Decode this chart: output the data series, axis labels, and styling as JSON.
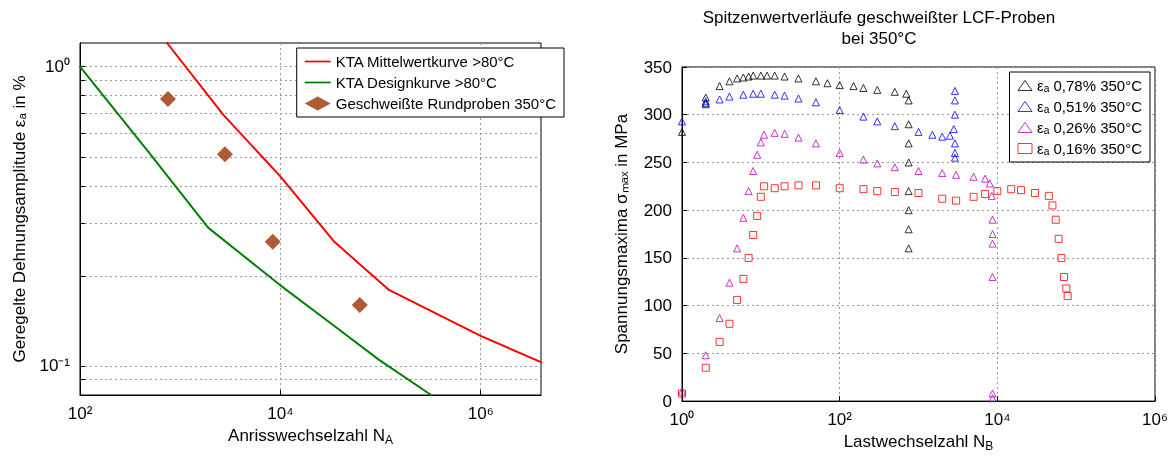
{
  "chart_data": [
    {
      "type": "line",
      "xlabel": "Anrisswechselzahl N$_{A}$",
      "ylabel": "Geregelte Dehnungsamplitude εₐ in %",
      "log": "xy",
      "xlim": [
        100,
        4000000
      ],
      "ylim": [
        0.08,
        1.2
      ],
      "xticks": [
        {
          "value": 100,
          "label": "10²"
        },
        {
          "value": 10000,
          "label": "10⁴"
        },
        {
          "value": 1000000,
          "label": "10⁶"
        }
      ],
      "yticks": [
        {
          "value": 0.09,
          "label": null
        },
        {
          "value": 0.1,
          "label": "10⁻¹"
        },
        {
          "value": 0.2,
          "label": null
        },
        {
          "value": 0.3,
          "label": null
        },
        {
          "value": 0.4,
          "label": null
        },
        {
          "value": 0.5,
          "label": null
        },
        {
          "value": 0.6,
          "label": null
        },
        {
          "value": 0.7,
          "label": null
        },
        {
          "value": 0.8,
          "label": null
        },
        {
          "value": 0.9,
          "label": null
        },
        {
          "value": 1,
          "label": "10⁰"
        }
      ],
      "grid": true,
      "legend": "top right",
      "line_style": "solid",
      "series": [
        {
          "name": "KTA Mittelwertkurve >80°C",
          "color": "#ff0000",
          "x": [
            740,
            2700,
            10000,
            34600,
            120000,
            1000000,
            4000000
          ],
          "values": [
            1.2,
            0.69,
            0.43,
            0.26,
            0.18,
            0.126,
            0.103
          ]
        },
        {
          "name": "KTA Designkurve >80°C",
          "color": "#008000",
          "x": [
            100,
            480,
            1900,
            10000,
            34600,
            96000,
            320000
          ],
          "values": [
            1.0,
            0.52,
            0.29,
            0.186,
            0.136,
            0.105,
            0.08
          ]
        },
        {
          "name": "Geschweißte Rundproben 350°C",
          "type": "scatter",
          "marker": "diamond",
          "color": "#993300",
          "x": [
            755,
            2800,
            8400,
            62000
          ],
          "values": [
            0.78,
            0.51,
            0.26,
            0.16
          ]
        }
      ]
    },
    {
      "type": "scatter",
      "title": "Spitzenwertverläufe geschweißter LCF-Proben\nbei 350°C",
      "xlabel": "Lastwechselzahl N$_{B}$",
      "ylabel": "Spannungsmaxima σₘₐₓ in MPa",
      "log": "x",
      "xlim": [
        1,
        1000000
      ],
      "ylim": [
        0,
        350
      ],
      "xticks": [
        {
          "value": 1,
          "label": "10⁰"
        },
        {
          "value": 100,
          "label": "10²"
        },
        {
          "value": 10000,
          "label": "10⁴"
        },
        {
          "value": 1000000,
          "label": "10⁶"
        }
      ],
      "yticks": [
        0,
        50,
        100,
        150,
        200,
        250,
        300,
        350
      ],
      "grid": true,
      "legend": "top right",
      "marker": "triangle",
      "series": [
        {
          "name": "εₐ 0,78% 350°C",
          "color": "#000000",
          "x": [
            1,
            2,
            2,
            3,
            4,
            5,
            6,
            7,
            8,
            10,
            12,
            15,
            20,
            30,
            50,
            70,
            100,
            150,
            200,
            300,
            500,
            700,
            750,
            750,
            750,
            750,
            750,
            750,
            750,
            750
          ],
          "values": [
            282,
            318,
            312,
            330,
            335,
            338,
            339,
            340,
            341,
            341,
            341,
            341,
            340,
            338,
            335,
            333,
            331,
            330,
            328,
            326,
            324,
            322,
            315,
            290,
            270,
            250,
            220,
            200,
            180,
            160
          ]
        },
        {
          "name": "εₐ 0,51% 350°C",
          "color": "#0000ff",
          "x": [
            1,
            2,
            2,
            3,
            4,
            6,
            8,
            10,
            15,
            20,
            30,
            50,
            100,
            200,
            300,
            500,
            1000,
            1500,
            2000,
            2500,
            2800,
            2900,
            2900,
            2900,
            2900,
            2900,
            2900
          ],
          "values": [
            293,
            311,
            314,
            316,
            319,
            321,
            322,
            322,
            321,
            320,
            317,
            313,
            305,
            298,
            293,
            288,
            282,
            279,
            277,
            278,
            285,
            300,
            315,
            325,
            270,
            260,
            255
          ]
        },
        {
          "name": "εₐ 0,26% 350°C",
          "color": "#bf00bf",
          "x": [
            1,
            2,
            3,
            4,
            5,
            6,
            7,
            8,
            9,
            10,
            11,
            15,
            20,
            30,
            50,
            100,
            200,
            300,
            500,
            1000,
            2000,
            3000,
            5000,
            7000,
            8000,
            8500,
            8700,
            8700,
            8700,
            8700,
            8700,
            8700
          ],
          "values": [
            10,
            48,
            87,
            124,
            160,
            192,
            220,
            241,
            258,
            271,
            279,
            281,
            280,
            276,
            270,
            260,
            253,
            249,
            245,
            241,
            239,
            237,
            235,
            233,
            228,
            215,
            190,
            175,
            165,
            130,
            8,
            3
          ]
        },
        {
          "name": "εₐ 0,16% 350°C",
          "color": "#ff0000",
          "marker": "square",
          "x": [
            1,
            2,
            3,
            4,
            5,
            6,
            7,
            8,
            9,
            10,
            11,
            15,
            20,
            30,
            50,
            100,
            200,
            300,
            500,
            1000,
            2000,
            3000,
            5000,
            7000,
            10000,
            15000,
            20000,
            30000,
            45000,
            50000,
            55000,
            60000,
            65000,
            70000,
            75000,
            78000
          ],
          "values": [
            8,
            35,
            62,
            81,
            106,
            128,
            150,
            174,
            194,
            214,
            225,
            223,
            225,
            226,
            226,
            223,
            222,
            220,
            219,
            218,
            212,
            210,
            214,
            217,
            220,
            222,
            221,
            218,
            215,
            205,
            190,
            170,
            150,
            130,
            118,
            110
          ]
        }
      ]
    }
  ]
}
